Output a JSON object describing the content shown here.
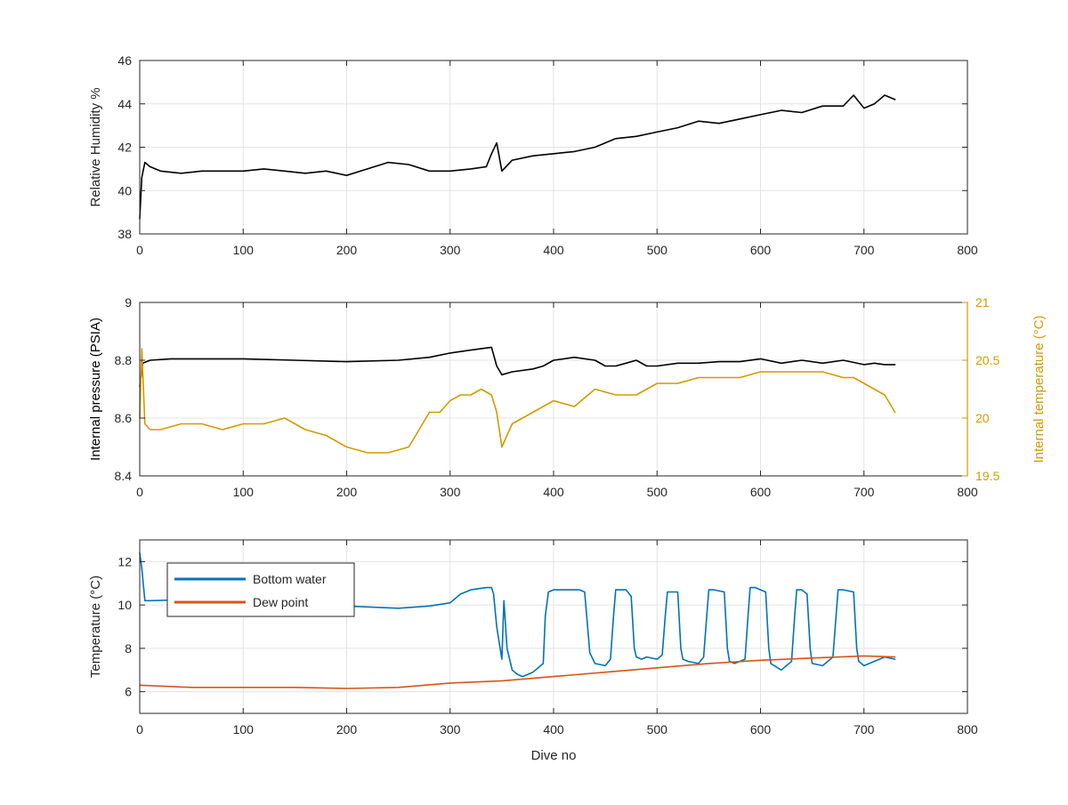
{
  "chart_data": [
    {
      "type": "line",
      "ylabel": "Relative Humidity %",
      "xlabel": "",
      "xlim": [
        0,
        800
      ],
      "ylim": [
        38,
        46
      ],
      "xticks": [
        0,
        100,
        200,
        300,
        400,
        500,
        600,
        700,
        800
      ],
      "yticks": [
        38,
        40,
        42,
        44,
        46
      ],
      "grid": true,
      "series": [
        {
          "color": "#000000",
          "axis": "left",
          "x": [
            0,
            2,
            5,
            10,
            20,
            40,
            60,
            80,
            100,
            120,
            140,
            160,
            180,
            200,
            220,
            240,
            260,
            280,
            300,
            320,
            335,
            340,
            345,
            350,
            360,
            380,
            400,
            420,
            440,
            460,
            480,
            500,
            520,
            540,
            560,
            580,
            600,
            620,
            640,
            660,
            680,
            690,
            700,
            710,
            720,
            730
          ],
          "y": [
            38.7,
            40.6,
            41.3,
            41.1,
            40.9,
            40.8,
            40.9,
            40.9,
            40.9,
            41.0,
            40.9,
            40.8,
            40.9,
            40.7,
            41.0,
            41.3,
            41.2,
            40.9,
            40.9,
            41.0,
            41.1,
            41.7,
            42.2,
            40.9,
            41.4,
            41.6,
            41.7,
            41.8,
            42.0,
            42.4,
            42.5,
            42.7,
            42.9,
            43.2,
            43.1,
            43.3,
            43.5,
            43.7,
            43.6,
            43.9,
            43.9,
            44.4,
            43.8,
            44.0,
            44.4,
            44.2
          ]
        }
      ]
    },
    {
      "type": "line",
      "ylabel": "Internal pressure (PSIA)",
      "y2label": "Internal temperature (°C)",
      "xlabel": "",
      "xlim": [
        0,
        800
      ],
      "ylim": [
        8.4,
        9
      ],
      "y2lim": [
        19.5,
        21
      ],
      "xticks": [
        0,
        100,
        200,
        300,
        400,
        500,
        600,
        700,
        800
      ],
      "yticks": [
        8.4,
        8.6,
        8.8,
        9
      ],
      "y2ticks": [
        19.5,
        20,
        20.5,
        21
      ],
      "y2color": "#D39A00",
      "grid": true,
      "series": [
        {
          "color": "#000000",
          "axis": "left",
          "x": [
            0,
            3,
            10,
            30,
            60,
            100,
            150,
            200,
            250,
            280,
            300,
            320,
            340,
            345,
            350,
            360,
            380,
            390,
            400,
            420,
            440,
            450,
            460,
            470,
            480,
            490,
            500,
            520,
            540,
            560,
            580,
            600,
            620,
            640,
            660,
            680,
            700,
            710,
            720,
            730
          ],
          "y": [
            8.71,
            8.79,
            8.8,
            8.805,
            8.805,
            8.805,
            8.8,
            8.795,
            8.8,
            8.81,
            8.825,
            8.835,
            8.845,
            8.78,
            8.75,
            8.76,
            8.77,
            8.78,
            8.8,
            8.81,
            8.8,
            8.78,
            8.78,
            8.79,
            8.8,
            8.78,
            8.78,
            8.79,
            8.79,
            8.795,
            8.795,
            8.805,
            8.79,
            8.8,
            8.79,
            8.8,
            8.785,
            8.79,
            8.785,
            8.785
          ]
        },
        {
          "color": "#D39A00",
          "axis": "right",
          "x": [
            0,
            2,
            5,
            10,
            20,
            40,
            60,
            80,
            100,
            120,
            140,
            160,
            180,
            200,
            220,
            240,
            260,
            270,
            280,
            290,
            300,
            310,
            320,
            330,
            340,
            345,
            350,
            360,
            380,
            400,
            420,
            440,
            460,
            480,
            500,
            520,
            540,
            560,
            580,
            600,
            620,
            640,
            660,
            680,
            690,
            700,
            710,
            720,
            730
          ],
          "y": [
            20.0,
            20.6,
            19.95,
            19.9,
            19.9,
            19.95,
            19.95,
            19.9,
            19.95,
            19.95,
            20.0,
            19.9,
            19.85,
            19.75,
            19.7,
            19.7,
            19.75,
            19.9,
            20.05,
            20.05,
            20.15,
            20.2,
            20.2,
            20.25,
            20.2,
            20.05,
            19.75,
            19.95,
            20.05,
            20.15,
            20.1,
            20.25,
            20.2,
            20.2,
            20.3,
            20.3,
            20.35,
            20.35,
            20.35,
            20.4,
            20.4,
            20.4,
            20.4,
            20.35,
            20.35,
            20.3,
            20.25,
            20.2,
            20.05
          ]
        }
      ]
    },
    {
      "type": "line",
      "ylabel": "Temperature (°C)",
      "xlabel": "Dive no",
      "xlim": [
        0,
        800
      ],
      "ylim": [
        5,
        13
      ],
      "xticks": [
        0,
        100,
        200,
        300,
        400,
        500,
        600,
        700,
        800
      ],
      "yticks": [
        6,
        8,
        10,
        12
      ],
      "grid": true,
      "legend": {
        "position": "top-left"
      },
      "series": [
        {
          "name": "Bottom water",
          "color": "#0072BD",
          "axis": "left",
          "x": [
            0,
            2,
            5,
            10,
            50,
            100,
            150,
            200,
            250,
            280,
            300,
            310,
            320,
            335,
            340,
            342,
            345,
            350,
            352,
            355,
            360,
            365,
            370,
            380,
            390,
            392,
            395,
            400,
            420,
            425,
            430,
            432,
            435,
            440,
            450,
            455,
            458,
            460,
            465,
            470,
            475,
            478,
            480,
            485,
            490,
            500,
            505,
            508,
            510,
            515,
            520,
            523,
            525,
            530,
            540,
            545,
            548,
            550,
            555,
            565,
            568,
            570,
            575,
            585,
            588,
            590,
            595,
            605,
            608,
            610,
            620,
            630,
            633,
            635,
            640,
            645,
            648,
            650,
            660,
            670,
            673,
            675,
            680,
            690,
            693,
            695,
            700,
            710,
            720,
            730
          ],
          "y": [
            12.4,
            11.7,
            10.2,
            10.2,
            10.25,
            10.2,
            10.1,
            9.95,
            9.85,
            9.95,
            10.1,
            10.5,
            10.7,
            10.8,
            10.8,
            10.5,
            9.0,
            7.5,
            10.2,
            8.0,
            7.0,
            6.8,
            6.7,
            6.9,
            7.3,
            9.5,
            10.6,
            10.7,
            10.7,
            10.7,
            10.6,
            9.5,
            7.8,
            7.3,
            7.2,
            7.5,
            9.5,
            10.7,
            10.7,
            10.7,
            10.4,
            8.0,
            7.6,
            7.5,
            7.6,
            7.5,
            7.7,
            9.5,
            10.6,
            10.6,
            10.6,
            8.0,
            7.5,
            7.4,
            7.3,
            7.6,
            9.5,
            10.7,
            10.7,
            10.6,
            8.0,
            7.4,
            7.3,
            7.5,
            9.5,
            10.8,
            10.8,
            10.6,
            8.0,
            7.3,
            7.0,
            7.4,
            9.5,
            10.7,
            10.7,
            10.5,
            8.0,
            7.3,
            7.2,
            7.6,
            9.5,
            10.7,
            10.7,
            10.6,
            8.0,
            7.4,
            7.2,
            7.4,
            7.6,
            7.5
          ]
        },
        {
          "name": "Dew point",
          "color": "#D95319",
          "axis": "left",
          "x": [
            0,
            50,
            100,
            150,
            200,
            250,
            300,
            350,
            400,
            450,
            500,
            550,
            600,
            650,
            700,
            730
          ],
          "y": [
            6.3,
            6.2,
            6.2,
            6.2,
            6.15,
            6.2,
            6.4,
            6.5,
            6.7,
            6.9,
            7.1,
            7.3,
            7.45,
            7.55,
            7.65,
            7.6
          ]
        }
      ]
    }
  ]
}
